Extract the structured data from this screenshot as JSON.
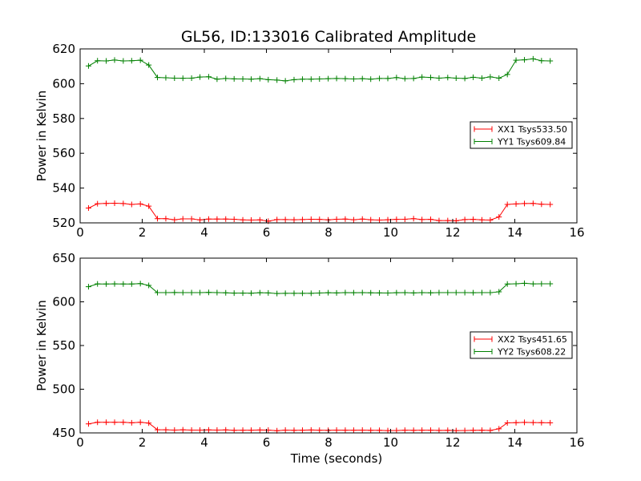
{
  "chart_data": [
    {
      "type": "line",
      "title": "GL56, ID:133016 Calibrated Amplitude",
      "xlabel": "",
      "ylabel": "Power in Kelvin",
      "xlim": [
        0,
        16
      ],
      "ylim": [
        520,
        620
      ],
      "xticks": [
        0,
        2,
        4,
        6,
        8,
        10,
        12,
        14,
        16
      ],
      "yticks": [
        520,
        540,
        560,
        580,
        600,
        620
      ],
      "grid": false,
      "legend_position": "center-right",
      "x": [
        0.27,
        0.56,
        0.84,
        1.11,
        1.39,
        1.66,
        1.94,
        2.21,
        2.49,
        2.76,
        3.04,
        3.31,
        3.59,
        3.86,
        4.14,
        4.41,
        4.69,
        4.96,
        5.24,
        5.51,
        5.79,
        6.06,
        6.34,
        6.61,
        6.89,
        7.16,
        7.44,
        7.71,
        7.99,
        8.26,
        8.54,
        8.81,
        9.09,
        9.36,
        9.64,
        9.91,
        10.19,
        10.46,
        10.74,
        11.01,
        11.29,
        11.56,
        11.84,
        12.11,
        12.39,
        12.66,
        12.94,
        13.21,
        13.49,
        13.76,
        14.04,
        14.31,
        14.59,
        14.86,
        15.14
      ],
      "series": [
        {
          "name": "XX1 Tsys533.50",
          "color": "#ff0000",
          "values": [
            528.5,
            531.0,
            531.2,
            531.3,
            531.1,
            530.6,
            530.9,
            529.6,
            522.4,
            522.4,
            521.8,
            522.3,
            522.3,
            521.7,
            522.2,
            522.2,
            522.2,
            522.1,
            521.7,
            521.6,
            521.7,
            521.0,
            521.9,
            521.9,
            521.8,
            521.9,
            522.1,
            522.0,
            521.7,
            522.1,
            522.2,
            521.8,
            522.2,
            521.8,
            521.6,
            521.8,
            522.0,
            522.1,
            522.4,
            521.9,
            522.0,
            521.3,
            521.3,
            521.2,
            521.9,
            522.0,
            521.7,
            521.6,
            523.4,
            530.6,
            530.9,
            531.1,
            531.2,
            530.7,
            530.6
          ]
        },
        {
          "name": "YY1 Tsys609.84",
          "color": "#008000",
          "values": [
            610.2,
            613.2,
            613.1,
            613.6,
            613.1,
            613.2,
            613.5,
            610.7,
            603.6,
            603.4,
            603.2,
            603.1,
            603.2,
            603.8,
            604.0,
            602.6,
            603.0,
            602.8,
            602.7,
            602.6,
            602.9,
            602.3,
            602.1,
            601.6,
            602.3,
            602.6,
            602.6,
            602.7,
            602.9,
            603.0,
            602.9,
            602.7,
            602.9,
            602.6,
            603.0,
            603.0,
            603.5,
            602.9,
            603.0,
            603.8,
            603.6,
            603.2,
            603.5,
            603.2,
            603.0,
            603.7,
            603.2,
            603.9,
            603.2,
            605.3,
            613.5,
            613.7,
            614.3,
            613.2,
            613.1
          ]
        }
      ]
    },
    {
      "type": "line",
      "title": "",
      "xlabel": "Time (seconds)",
      "ylabel": "Power in Kelvin",
      "xlim": [
        0,
        16
      ],
      "ylim": [
        450,
        650
      ],
      "xticks": [
        0,
        2,
        4,
        6,
        8,
        10,
        12,
        14,
        16
      ],
      "yticks": [
        450,
        500,
        550,
        600,
        650
      ],
      "grid": false,
      "legend_position": "center-right",
      "x": [
        0.27,
        0.56,
        0.84,
        1.11,
        1.39,
        1.66,
        1.94,
        2.21,
        2.49,
        2.76,
        3.04,
        3.31,
        3.59,
        3.86,
        4.14,
        4.41,
        4.69,
        4.96,
        5.24,
        5.51,
        5.79,
        6.06,
        6.34,
        6.61,
        6.89,
        7.16,
        7.44,
        7.71,
        7.99,
        8.26,
        8.54,
        8.81,
        9.09,
        9.36,
        9.64,
        9.91,
        10.19,
        10.46,
        10.74,
        11.01,
        11.29,
        11.56,
        11.84,
        12.11,
        12.39,
        12.66,
        12.94,
        13.21,
        13.49,
        13.76,
        14.04,
        14.31,
        14.59,
        14.86,
        15.14
      ],
      "series": [
        {
          "name": "XX2 Tsys451.65",
          "color": "#ff0000",
          "values": [
            460.3,
            462.2,
            462.1,
            462.2,
            462.2,
            461.6,
            462.2,
            461.2,
            453.6,
            453.5,
            453.2,
            453.5,
            453.2,
            453.2,
            453.4,
            453.2,
            453.4,
            453.0,
            453.1,
            453.1,
            453.3,
            453.2,
            452.5,
            453.2,
            453.0,
            453.1,
            453.3,
            453.1,
            453.0,
            453.2,
            453.1,
            453.1,
            453.2,
            453.0,
            453.0,
            452.6,
            452.8,
            453.1,
            453.0,
            453.1,
            453.1,
            452.9,
            453.0,
            452.6,
            452.8,
            453.0,
            453.1,
            452.9,
            454.7,
            461.5,
            461.7,
            462.0,
            461.8,
            461.7,
            461.6
          ]
        },
        {
          "name": "YY2 Tsys608.22",
          "color": "#008000",
          "values": [
            617.3,
            620.5,
            620.4,
            620.5,
            620.4,
            620.4,
            620.9,
            618.8,
            610.5,
            610.6,
            610.7,
            610.5,
            610.6,
            610.6,
            610.8,
            610.6,
            610.3,
            610.0,
            610.0,
            609.9,
            610.4,
            610.2,
            609.5,
            609.7,
            609.8,
            609.8,
            609.8,
            610.1,
            610.4,
            610.2,
            610.5,
            610.4,
            610.5,
            610.3,
            610.2,
            610.1,
            610.4,
            610.5,
            610.2,
            610.5,
            610.3,
            610.5,
            610.6,
            610.5,
            610.6,
            610.4,
            610.5,
            610.5,
            611.5,
            620.4,
            620.6,
            621.2,
            620.5,
            620.6,
            620.6
          ]
        }
      ]
    }
  ]
}
